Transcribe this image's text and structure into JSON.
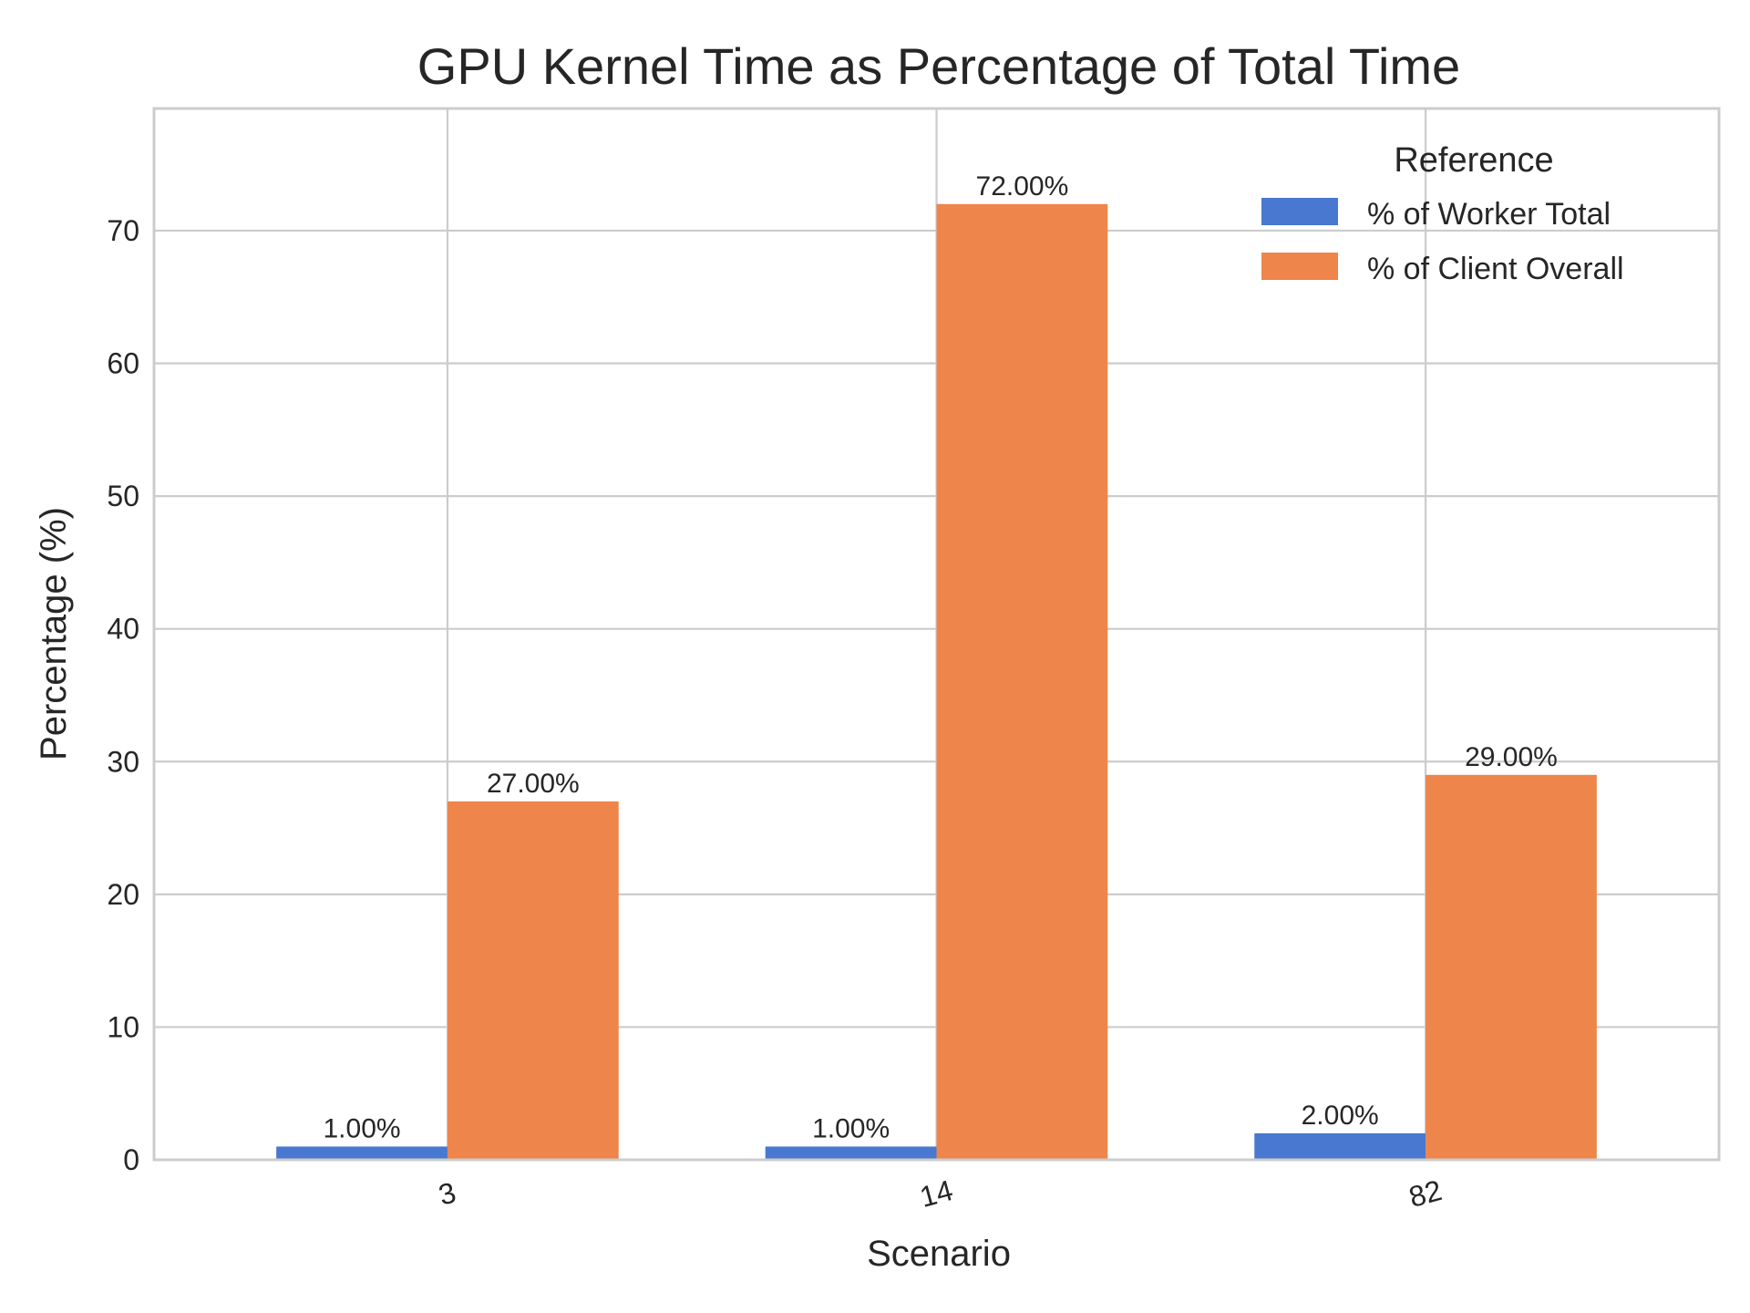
{
  "chart_data": {
    "type": "bar",
    "title": "GPU Kernel Time as Percentage of Total Time",
    "xlabel": "Scenario",
    "ylabel": "Percentage (%)",
    "categories": [
      "3",
      "14",
      "82"
    ],
    "series": [
      {
        "name": "% of Worker Total",
        "color": "#4878d0",
        "values": [
          1,
          1,
          2
        ],
        "labels": [
          "1.00%",
          "1.00%",
          "2.00%"
        ]
      },
      {
        "name": "% of Client Overall",
        "color": "#ee854a",
        "values": [
          27,
          72,
          29
        ],
        "labels": [
          "27.00%",
          "72.00%",
          "29.00%"
        ]
      }
    ],
    "ylim": [
      0,
      79.2
    ],
    "yticks": [
      0,
      10,
      20,
      30,
      40,
      50,
      60,
      70
    ],
    "grid": true,
    "legend": {
      "title": "Reference",
      "placement": "top-right"
    },
    "xtick_rotation_deg": 15
  }
}
